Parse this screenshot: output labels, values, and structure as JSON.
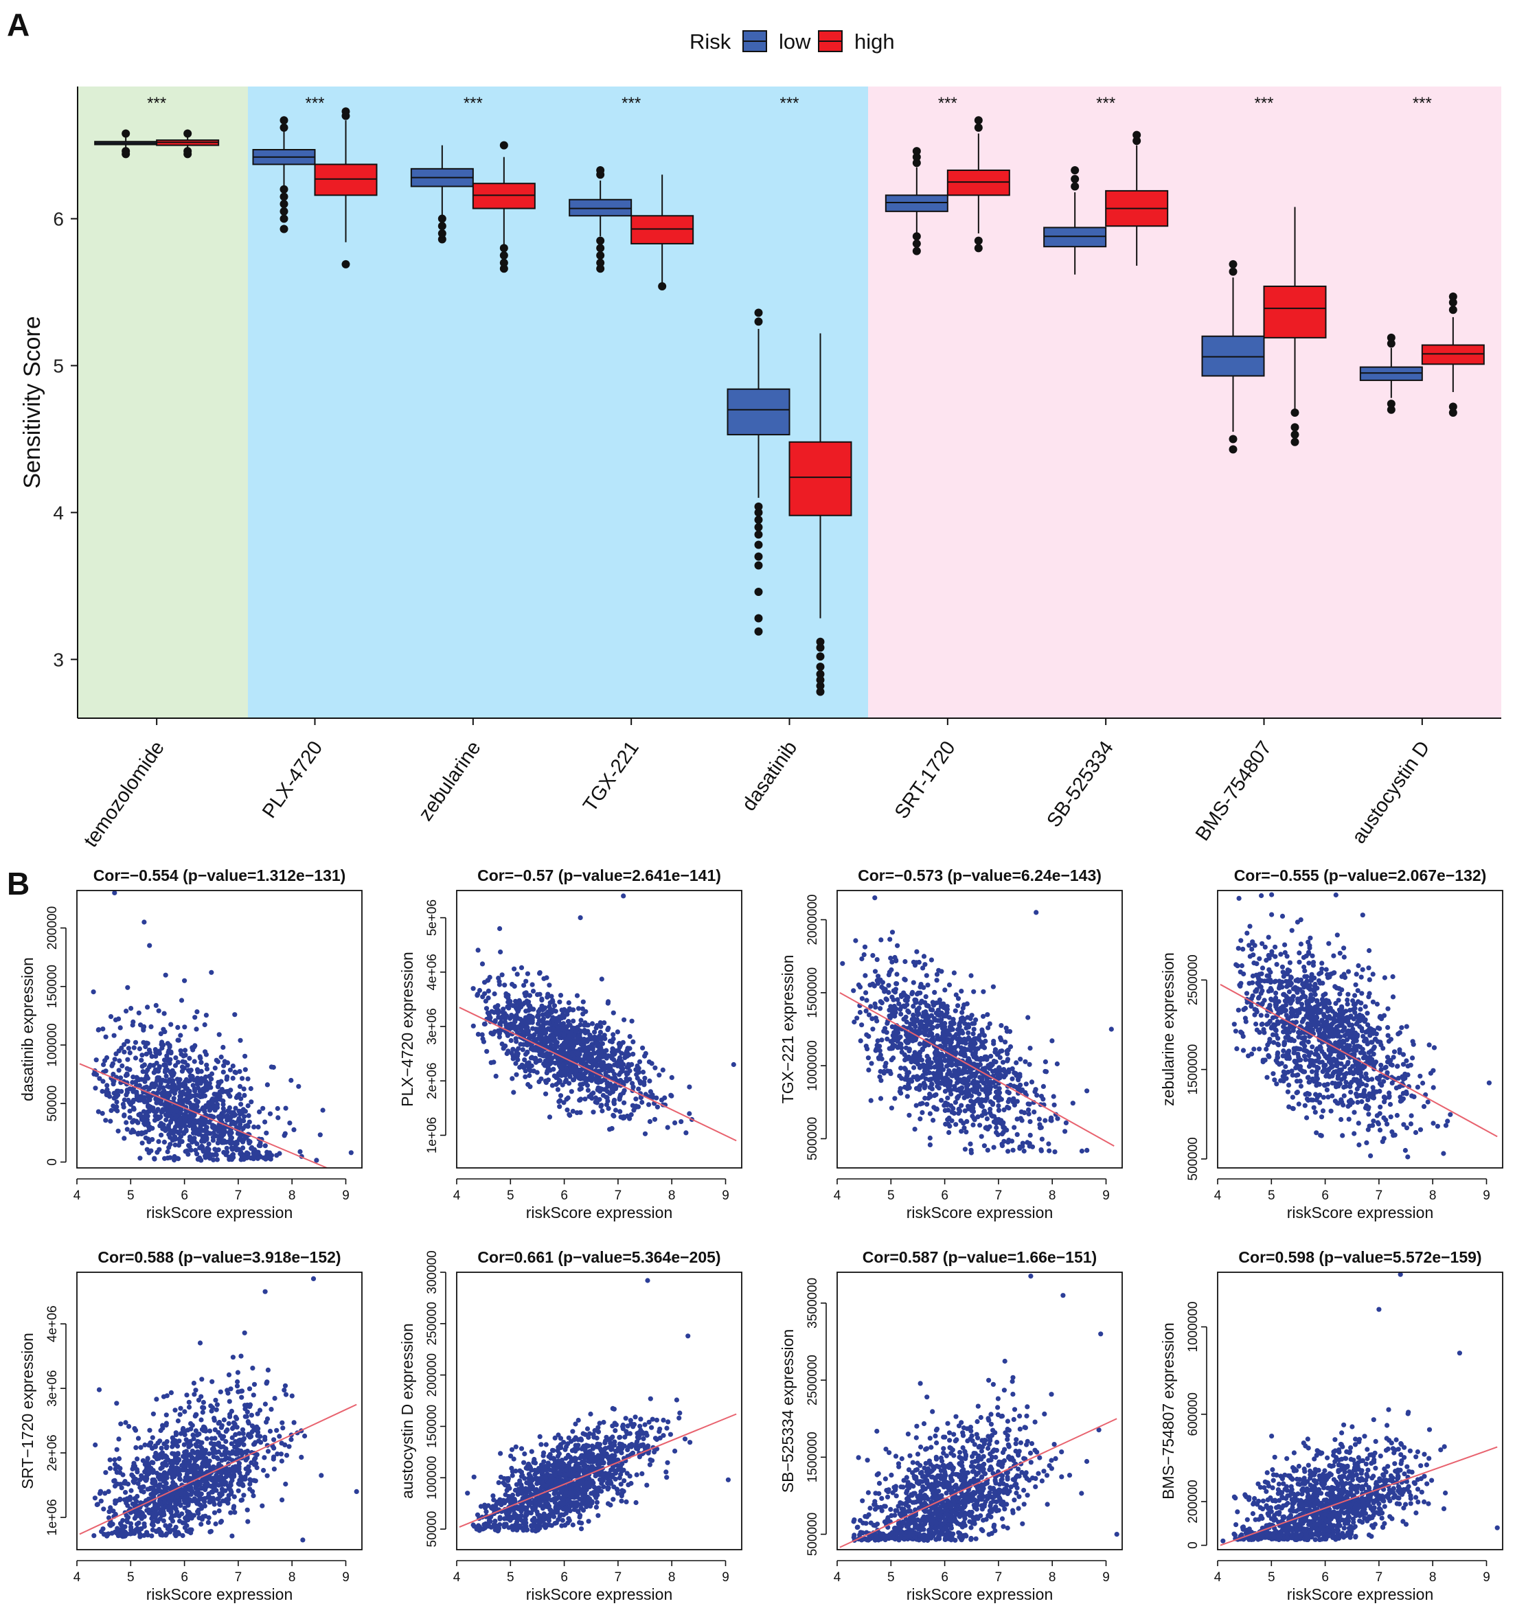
{
  "figure": {
    "panel_a_letter": "A",
    "panel_b_letter": "B"
  },
  "colors": {
    "low": "#3F64B1",
    "high": "#ED1C24",
    "bg_green": "#DDEFD5",
    "bg_blue": "#B7E6FB",
    "bg_pink": "#FDE4F0",
    "scatter_point": "#2C3E98",
    "fit_line": "#E8626E"
  },
  "chart_data": [
    {
      "type": "box",
      "ylabel": "Sensitivity Score",
      "ylim": [
        2.6,
        6.9
      ],
      "yticks": [
        3,
        4,
        5,
        6
      ],
      "legend": {
        "title": "Risk",
        "items": [
          "low",
          "high"
        ],
        "position": "top"
      },
      "significance": "***",
      "background_groups": [
        {
          "color": "green",
          "from": 0,
          "to": 0
        },
        {
          "color": "blue",
          "from": 1,
          "to": 4
        },
        {
          "color": "pink",
          "from": 5,
          "to": 8
        }
      ],
      "categories": [
        "temozolomide",
        "PLX-4720",
        "zebularine",
        "TGX-221",
        "dasatinib",
        "SRT-1720",
        "SB-525334",
        "BMS-754807",
        "austocystin D"
      ],
      "series": [
        {
          "name": "low",
          "boxes": [
            {
              "q1": 6.505,
              "median": 6.515,
              "q3": 6.525,
              "whislo": 6.47,
              "whishi": 6.56,
              "outliers": [
                6.44,
                6.46,
                6.58
              ]
            },
            {
              "q1": 6.37,
              "median": 6.42,
              "q3": 6.47,
              "whislo": 6.22,
              "whishi": 6.6,
              "outliers": [
                5.93,
                6.0,
                6.05,
                6.1,
                6.15,
                6.2,
                6.62,
                6.67
              ]
            },
            {
              "q1": 6.22,
              "median": 6.28,
              "q3": 6.34,
              "whislo": 6.02,
              "whishi": 6.5,
              "outliers": [
                5.86,
                5.9,
                5.95,
                6.0
              ]
            },
            {
              "q1": 6.02,
              "median": 6.07,
              "q3": 6.13,
              "whislo": 5.88,
              "whishi": 6.26,
              "outliers": [
                5.66,
                5.7,
                5.75,
                5.8,
                5.85,
                6.3,
                6.33
              ]
            },
            {
              "q1": 4.53,
              "median": 4.7,
              "q3": 4.84,
              "whislo": 4.1,
              "whishi": 5.25,
              "outliers": [
                3.19,
                3.28,
                3.46,
                3.64,
                3.7,
                3.78,
                3.85,
                3.9,
                3.95,
                4.0,
                4.04,
                5.3,
                5.36
              ]
            },
            {
              "q1": 6.05,
              "median": 6.11,
              "q3": 6.16,
              "whislo": 5.9,
              "whishi": 6.35,
              "outliers": [
                5.78,
                5.83,
                5.88,
                6.38,
                6.42,
                6.46
              ]
            },
            {
              "q1": 5.81,
              "median": 5.88,
              "q3": 5.94,
              "whislo": 5.62,
              "whishi": 6.18,
              "outliers": [
                6.22,
                6.27,
                6.33
              ]
            },
            {
              "q1": 4.93,
              "median": 5.06,
              "q3": 5.2,
              "whislo": 4.55,
              "whishi": 5.6,
              "outliers": [
                4.43,
                4.5,
                5.64,
                5.69
              ]
            },
            {
              "q1": 4.9,
              "median": 4.95,
              "q3": 4.99,
              "whislo": 4.78,
              "whishi": 5.12,
              "outliers": [
                4.7,
                4.74,
                5.15,
                5.19
              ]
            }
          ]
        },
        {
          "name": "high",
          "boxes": [
            {
              "q1": 6.5,
              "median": 6.52,
              "q3": 6.535,
              "whislo": 6.47,
              "whishi": 6.56,
              "outliers": [
                6.44,
                6.46,
                6.58
              ]
            },
            {
              "q1": 6.16,
              "median": 6.27,
              "q3": 6.37,
              "whislo": 5.84,
              "whishi": 6.67,
              "outliers": [
                5.69,
                6.7,
                6.73
              ]
            },
            {
              "q1": 6.07,
              "median": 6.16,
              "q3": 6.24,
              "whislo": 5.8,
              "whishi": 6.42,
              "outliers": [
                5.66,
                5.7,
                5.75,
                5.8,
                6.5
              ]
            },
            {
              "q1": 5.83,
              "median": 5.93,
              "q3": 6.02,
              "whislo": 5.55,
              "whishi": 6.3,
              "outliers": [
                5.54
              ]
            },
            {
              "q1": 3.98,
              "median": 4.24,
              "q3": 4.48,
              "whislo": 3.28,
              "whishi": 5.22,
              "outliers": [
                2.78,
                2.82,
                2.86,
                2.9,
                2.95,
                3.02,
                3.08,
                3.12
              ]
            },
            {
              "q1": 6.16,
              "median": 6.25,
              "q3": 6.33,
              "whislo": 5.9,
              "whishi": 6.58,
              "outliers": [
                5.8,
                5.85,
                6.62,
                6.67
              ]
            },
            {
              "q1": 5.95,
              "median": 6.07,
              "q3": 6.19,
              "whislo": 5.68,
              "whishi": 6.5,
              "outliers": [
                6.53,
                6.57
              ]
            },
            {
              "q1": 5.19,
              "median": 5.39,
              "q3": 5.54,
              "whislo": 4.7,
              "whishi": 6.08,
              "outliers": [
                4.48,
                4.53,
                4.58,
                4.68
              ]
            },
            {
              "q1": 5.01,
              "median": 5.08,
              "q3": 5.14,
              "whislo": 4.82,
              "whishi": 5.33,
              "outliers": [
                4.68,
                4.72,
                5.38,
                5.43,
                5.47
              ]
            }
          ]
        }
      ]
    },
    {
      "type": "scatter",
      "title": "Cor=−0.554 (p−value=1.312e−131)",
      "xlabel": "riskScore expression",
      "ylabel": "dasatinib expression",
      "xlim": [
        4,
        9.3
      ],
      "ylim": [
        -5000,
        232000
      ],
      "xticks": [
        4,
        5,
        6,
        7,
        8,
        9
      ],
      "yticks": [
        0,
        50000,
        100000,
        150000,
        200000
      ],
      "ytick_labels": [
        "0",
        "50000",
        "100000",
        "150000",
        "200000"
      ],
      "fit": {
        "x0": 4.05,
        "y0": 84000,
        "x1": 8.65,
        "y1": -5000
      },
      "cloud": {
        "xmean": 6.0,
        "xsd": 0.8,
        "base": 45000,
        "slope": -19000,
        "sd": 22000,
        "floor": 1500,
        "n": 1100,
        "skew": true
      },
      "extras": [
        [
          4.7,
          230000
        ],
        [
          5.25,
          205000
        ],
        [
          5.35,
          185000
        ],
        [
          6.5,
          162000
        ],
        [
          6.0,
          155000
        ],
        [
          9.1,
          8000
        ]
      ]
    },
    {
      "type": "scatter",
      "title": "Cor=−0.57 (p−value=2.641e−141)",
      "xlabel": "riskScore expression",
      "ylabel": "PLX−4720 expression",
      "xlim": [
        4,
        9.3
      ],
      "ylim": [
        400000,
        5500000
      ],
      "xticks": [
        4,
        5,
        6,
        7,
        8,
        9
      ],
      "yticks": [
        1000000,
        2000000,
        3000000,
        4000000,
        5000000
      ],
      "ytick_labels": [
        "1e+06",
        "2e+06",
        "3e+06",
        "4e+06",
        "5e+06"
      ],
      "fit": {
        "x0": 4.05,
        "y0": 3350000,
        "x1": 9.2,
        "y1": 900000
      },
      "cloud": {
        "xmean": 6.0,
        "xsd": 0.8,
        "base": 2600000,
        "slope": -480000,
        "sd": 420000,
        "floor": 900000,
        "n": 1200,
        "skew": false
      },
      "extras": [
        [
          7.1,
          5400000
        ],
        [
          6.3,
          5000000
        ],
        [
          4.8,
          4800000
        ],
        [
          9.15,
          2300000
        ]
      ]
    },
    {
      "type": "scatter",
      "title": "Cor=−0.573 (p−value=6.24e−143)",
      "xlabel": "riskScore expression",
      "ylabel": "TGX−221 expression",
      "xlim": [
        4,
        9.3
      ],
      "ylim": [
        300000,
        2200000
      ],
      "xticks": [
        4,
        5,
        6,
        7,
        8,
        9
      ],
      "yticks": [
        500000,
        1000000,
        1500000,
        2000000
      ],
      "ytick_labels": [
        "500000",
        "1000000",
        "1500000",
        "2000000"
      ],
      "fit": {
        "x0": 4.05,
        "y0": 1500000,
        "x1": 9.15,
        "y1": 450000
      },
      "cloud": {
        "xmean": 6.0,
        "xsd": 0.8,
        "base": 1080000,
        "slope": -200000,
        "sd": 230000,
        "floor": 400000,
        "n": 1200,
        "skew": false
      },
      "extras": [
        [
          4.7,
          2150000
        ],
        [
          7.7,
          2050000
        ],
        [
          9.1,
          1250000
        ],
        [
          4.1,
          1700000
        ]
      ]
    },
    {
      "type": "scatter",
      "title": "Cor=−0.555 (p−value=2.067e−132)",
      "xlabel": "riskScore expression",
      "ylabel": "zebularine expression",
      "xlim": [
        4,
        9.3
      ],
      "ylim": [
        400000,
        3500000
      ],
      "xticks": [
        4,
        5,
        6,
        7,
        8,
        9
      ],
      "yticks": [
        500000,
        1500000,
        2500000
      ],
      "ytick_labels": [
        "500000",
        "1500000",
        "2500000"
      ],
      "fit": {
        "x0": 4.05,
        "y0": 2450000,
        "x1": 9.2,
        "y1": 750000
      },
      "cloud": {
        "xmean": 6.0,
        "xsd": 0.8,
        "base": 1850000,
        "slope": -330000,
        "sd": 420000,
        "floor": 500000,
        "n": 1200,
        "skew": false
      },
      "extras": [
        [
          6.2,
          3450000
        ],
        [
          4.6,
          3100000
        ],
        [
          9.05,
          1350000
        ]
      ]
    },
    {
      "type": "scatter",
      "title": "Cor=0.588 (p−value=3.918e−152)",
      "xlabel": "riskScore expression",
      "ylabel": "SRT−1720 expression",
      "xlim": [
        4,
        9.3
      ],
      "ylim": [
        500000,
        4800000
      ],
      "xticks": [
        4,
        5,
        6,
        7,
        8,
        9
      ],
      "yticks": [
        1000000,
        2000000,
        3000000,
        4000000
      ],
      "ytick_labels": [
        "1e+06",
        "2e+06",
        "3e+06",
        "4e+06"
      ],
      "fit": {
        "x0": 4.05,
        "y0": 740000,
        "x1": 9.2,
        "y1": 2750000
      },
      "cloud": {
        "xmean": 6.0,
        "xsd": 0.8,
        "base": 1550000,
        "slope": 380000,
        "sd": 380000,
        "floor": 700000,
        "n": 1200,
        "skew": true
      },
      "extras": [
        [
          8.4,
          4700000
        ],
        [
          7.5,
          4500000
        ],
        [
          9.2,
          1400000
        ],
        [
          8.2,
          650000
        ]
      ]
    },
    {
      "type": "scatter",
      "title": "Cor=0.661 (p−value=5.364e−205)",
      "xlabel": "riskScore expression",
      "ylabel": "austocystin D expression",
      "xlim": [
        4,
        9.3
      ],
      "ylim": [
        30000,
        300000
      ],
      "xticks": [
        4,
        5,
        6,
        7,
        8,
        9
      ],
      "yticks": [
        50000,
        100000,
        150000,
        200000,
        250000,
        300000
      ],
      "ytick_labels": [
        "50000",
        "100000",
        "150000",
        "200000",
        "250000",
        "300000"
      ],
      "fit": {
        "x0": 4.05,
        "y0": 52000,
        "x1": 9.2,
        "y1": 162000
      },
      "cloud": {
        "xmean": 6.0,
        "xsd": 0.8,
        "base": 95000,
        "slope": 24000,
        "sd": 20000,
        "floor": 48000,
        "n": 1200,
        "skew": false
      },
      "extras": [
        [
          7.55,
          292000
        ],
        [
          8.3,
          238000
        ],
        [
          9.05,
          98000
        ],
        [
          4.2,
          85000
        ]
      ]
    },
    {
      "type": "scatter",
      "title": "Cor=0.587 (p−value=1.66e−151)",
      "xlabel": "riskScore expression",
      "ylabel": "SB−525334 expression",
      "xlim": [
        4,
        9.3
      ],
      "ylim": [
        300000,
        3900000
      ],
      "xticks": [
        4,
        5,
        6,
        7,
        8,
        9
      ],
      "yticks": [
        500000,
        1500000,
        2500000,
        3500000
      ],
      "ytick_labels": [
        "500000",
        "1500000",
        "2500000",
        "3500000"
      ],
      "fit": {
        "x0": 4.05,
        "y0": 330000,
        "x1": 9.2,
        "y1": 2000000
      },
      "cloud": {
        "xmean": 6.0,
        "xsd": 0.8,
        "base": 900000,
        "slope": 320000,
        "sd": 300000,
        "floor": 420000,
        "n": 1200,
        "skew": true
      },
      "extras": [
        [
          7.6,
          3850000
        ],
        [
          8.2,
          3600000
        ],
        [
          8.9,
          3100000
        ],
        [
          9.2,
          500000
        ]
      ]
    },
    {
      "type": "scatter",
      "title": "Cor=0.598 (p−value=5.572e−159)",
      "xlabel": "riskScore expression",
      "ylabel": "BMS−754807 expression",
      "xlim": [
        4,
        9.3
      ],
      "ylim": [
        -20000,
        1250000
      ],
      "xticks": [
        4,
        5,
        6,
        7,
        8,
        9
      ],
      "yticks": [
        0,
        200000,
        600000,
        1000000
      ],
      "ytick_labels": [
        "0",
        "200000",
        "600000",
        "1000000"
      ],
      "fit": {
        "x0": 4.05,
        "y0": 0,
        "x1": 9.2,
        "y1": 450000
      },
      "cloud": {
        "xmean": 6.0,
        "xsd": 0.8,
        "base": 165000,
        "slope": 75000,
        "sd": 90000,
        "floor": 25000,
        "n": 1200,
        "skew": true
      },
      "extras": [
        [
          7.4,
          1240000
        ],
        [
          7.0,
          1080000
        ],
        [
          8.5,
          880000
        ],
        [
          9.2,
          80000
        ],
        [
          4.1,
          20000
        ]
      ]
    }
  ]
}
